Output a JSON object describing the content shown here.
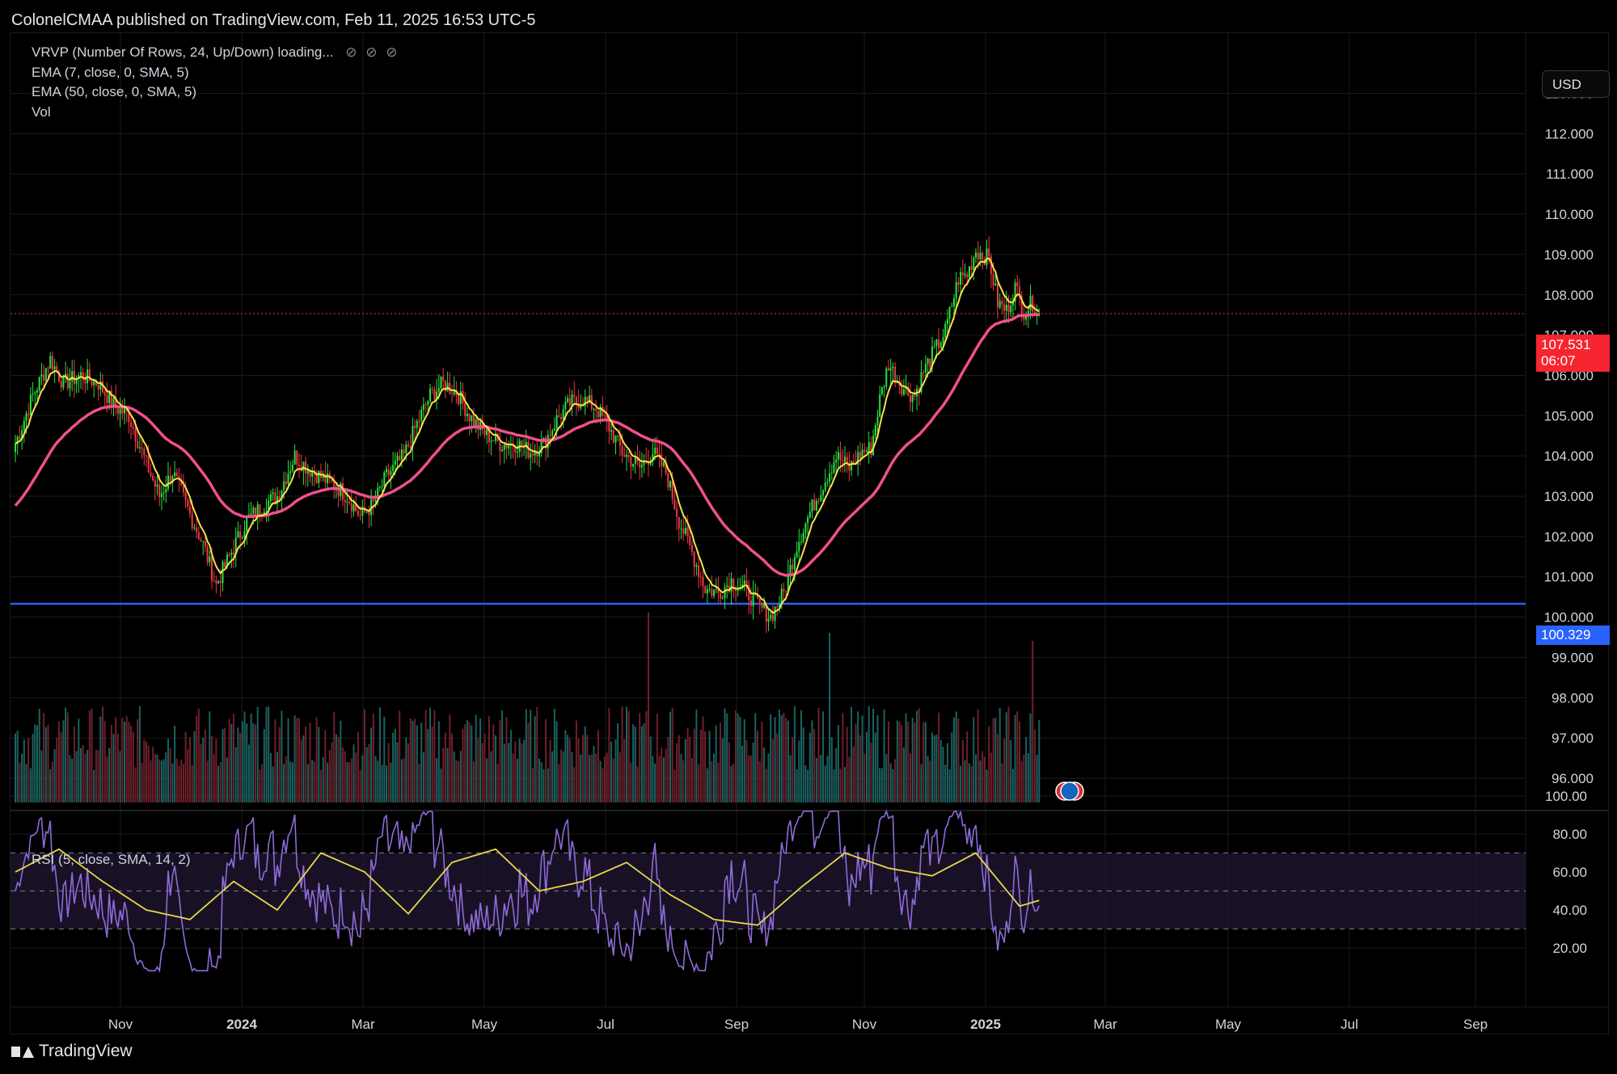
{
  "header": {
    "published": "ColonelCMAA published on TradingView.com, Feb 11, 2025 16:53 UTC-5"
  },
  "legend": {
    "vrvp": "VRVP (Number Of Rows, 24, Up/Down) loading...",
    "vrvp_icons": [
      "eye-off-icon",
      "eye-off-icon",
      "eye-off-icon"
    ],
    "ema7": "EMA (7, close, 0, SMA, 5)",
    "ema50": "EMA (50, close, 0, SMA, 5)",
    "vol": "Vol",
    "rsi": "RSI (5, close, SMA, 14, 2)"
  },
  "currency_button": "USD",
  "last_price": {
    "value": "107.531",
    "countdown": "06:07"
  },
  "hline_price": "100.329",
  "footer": {
    "brand": "TradingView"
  },
  "colors": {
    "up": "#26e33f",
    "down": "#f23645",
    "ema7": "#f5e24a",
    "ema50": "#f04f8e",
    "hline": "#2962ff",
    "rsi": "#8e6bd8",
    "rsi_ma": "#e8d84a",
    "grid": "#1b1b1b",
    "vol_up": "#1f6b6a",
    "vol_down": "#7a2430"
  },
  "chart_data": [
    {
      "type": "candlestick",
      "price_axis": {
        "ticks": [
          "113.000",
          "112.000",
          "111.000",
          "110.000",
          "109.000",
          "108.000",
          "107.000",
          "106.000",
          "105.000",
          "104.000",
          "103.000",
          "102.000",
          "101.000",
          "100.000",
          "99.000",
          "98.000",
          "97.000",
          "96.000"
        ],
        "range": [
          95.5,
          113.8
        ]
      },
      "time_axis": {
        "labels": [
          "Nov",
          "2024",
          "Mar",
          "May",
          "Jul",
          "Sep",
          "Nov",
          "2025",
          "Mar",
          "May",
          "Jul",
          "Sep"
        ],
        "bold": [
          "2024",
          "2025"
        ]
      },
      "series": [
        {
          "name": "EMA (7, close, 0, SMA, 5)",
          "type": "line",
          "color": "#f5e24a"
        },
        {
          "name": "EMA (50, close, 0, SMA, 5)",
          "type": "line",
          "color": "#f04f8e"
        }
      ],
      "close_anchors": [
        [
          0,
          104.3
        ],
        [
          8,
          105.5
        ],
        [
          16,
          106.4
        ],
        [
          22,
          105.8
        ],
        [
          30,
          106.0
        ],
        [
          38,
          105.8
        ],
        [
          46,
          105.2
        ],
        [
          52,
          105.0
        ],
        [
          60,
          103.8
        ],
        [
          66,
          103.0
        ],
        [
          72,
          103.6
        ],
        [
          78,
          102.8
        ],
        [
          86,
          101.8
        ],
        [
          92,
          100.8
        ],
        [
          98,
          101.5
        ],
        [
          106,
          102.4
        ],
        [
          114,
          102.8
        ],
        [
          120,
          103.0
        ],
        [
          128,
          104.0
        ],
        [
          134,
          103.7
        ],
        [
          142,
          103.4
        ],
        [
          148,
          103.2
        ],
        [
          152,
          103.0
        ],
        [
          158,
          102.5
        ],
        [
          164,
          102.8
        ],
        [
          170,
          103.5
        ],
        [
          178,
          104.0
        ],
        [
          184,
          104.8
        ],
        [
          190,
          105.5
        ],
        [
          196,
          105.8
        ],
        [
          202,
          105.6
        ],
        [
          208,
          105.0
        ],
        [
          214,
          104.6
        ],
        [
          222,
          104.3
        ],
        [
          230,
          104.3
        ],
        [
          236,
          104.1
        ],
        [
          242,
          104.3
        ],
        [
          248,
          104.9
        ],
        [
          254,
          105.3
        ],
        [
          260,
          105.4
        ],
        [
          266,
          105.2
        ],
        [
          272,
          104.7
        ],
        [
          278,
          104.1
        ],
        [
          286,
          103.7
        ],
        [
          292,
          104.1
        ],
        [
          298,
          103.6
        ],
        [
          304,
          102.4
        ],
        [
          310,
          101.6
        ],
        [
          316,
          100.7
        ],
        [
          322,
          100.6
        ],
        [
          328,
          100.9
        ],
        [
          334,
          100.7
        ],
        [
          340,
          100.3
        ],
        [
          346,
          100.0
        ],
        [
          352,
          100.6
        ],
        [
          358,
          101.8
        ],
        [
          364,
          102.6
        ],
        [
          370,
          103.3
        ],
        [
          376,
          104.0
        ],
        [
          382,
          103.7
        ],
        [
          388,
          104.1
        ],
        [
          392,
          104.2
        ],
        [
          396,
          105.4
        ],
        [
          400,
          106.3
        ],
        [
          404,
          105.9
        ],
        [
          408,
          105.6
        ],
        [
          412,
          105.5
        ],
        [
          416,
          106.1
        ],
        [
          420,
          106.5
        ],
        [
          426,
          107.1
        ],
        [
          432,
          108.4
        ],
        [
          436,
          108.5
        ],
        [
          440,
          109.1
        ],
        [
          446,
          108.9
        ],
        [
          450,
          107.8
        ],
        [
          454,
          107.6
        ],
        [
          458,
          108.2
        ],
        [
          462,
          107.6
        ],
        [
          466,
          107.8
        ],
        [
          469,
          107.53
        ]
      ],
      "horizontal_line": 100.329,
      "last_price": 107.531
    },
    {
      "type": "bar",
      "name": "Vol",
      "note": "volume histogram overlaid under price pane, no scale shown"
    },
    {
      "type": "line",
      "name": "RSI (5, close, SMA, 14, 2)",
      "axis": {
        "ticks": [
          "100.00",
          "80.00",
          "60.00",
          "40.00",
          "20.00"
        ],
        "range": [
          0,
          100
        ]
      },
      "bands": {
        "upper": 70,
        "middle": 50,
        "lower": 30
      },
      "rsi_ma_anchors": [
        [
          0,
          60
        ],
        [
          20,
          72
        ],
        [
          40,
          55
        ],
        [
          60,
          40
        ],
        [
          80,
          35
        ],
        [
          100,
          55
        ],
        [
          120,
          40
        ],
        [
          140,
          70
        ],
        [
          160,
          60
        ],
        [
          180,
          38
        ],
        [
          200,
          65
        ],
        [
          220,
          72
        ],
        [
          240,
          50
        ],
        [
          260,
          55
        ],
        [
          280,
          65
        ],
        [
          300,
          48
        ],
        [
          320,
          35
        ],
        [
          340,
          32
        ],
        [
          360,
          52
        ],
        [
          380,
          70
        ],
        [
          400,
          62
        ],
        [
          420,
          58
        ],
        [
          440,
          70
        ],
        [
          460,
          42
        ],
        [
          469,
          45
        ]
      ]
    }
  ]
}
